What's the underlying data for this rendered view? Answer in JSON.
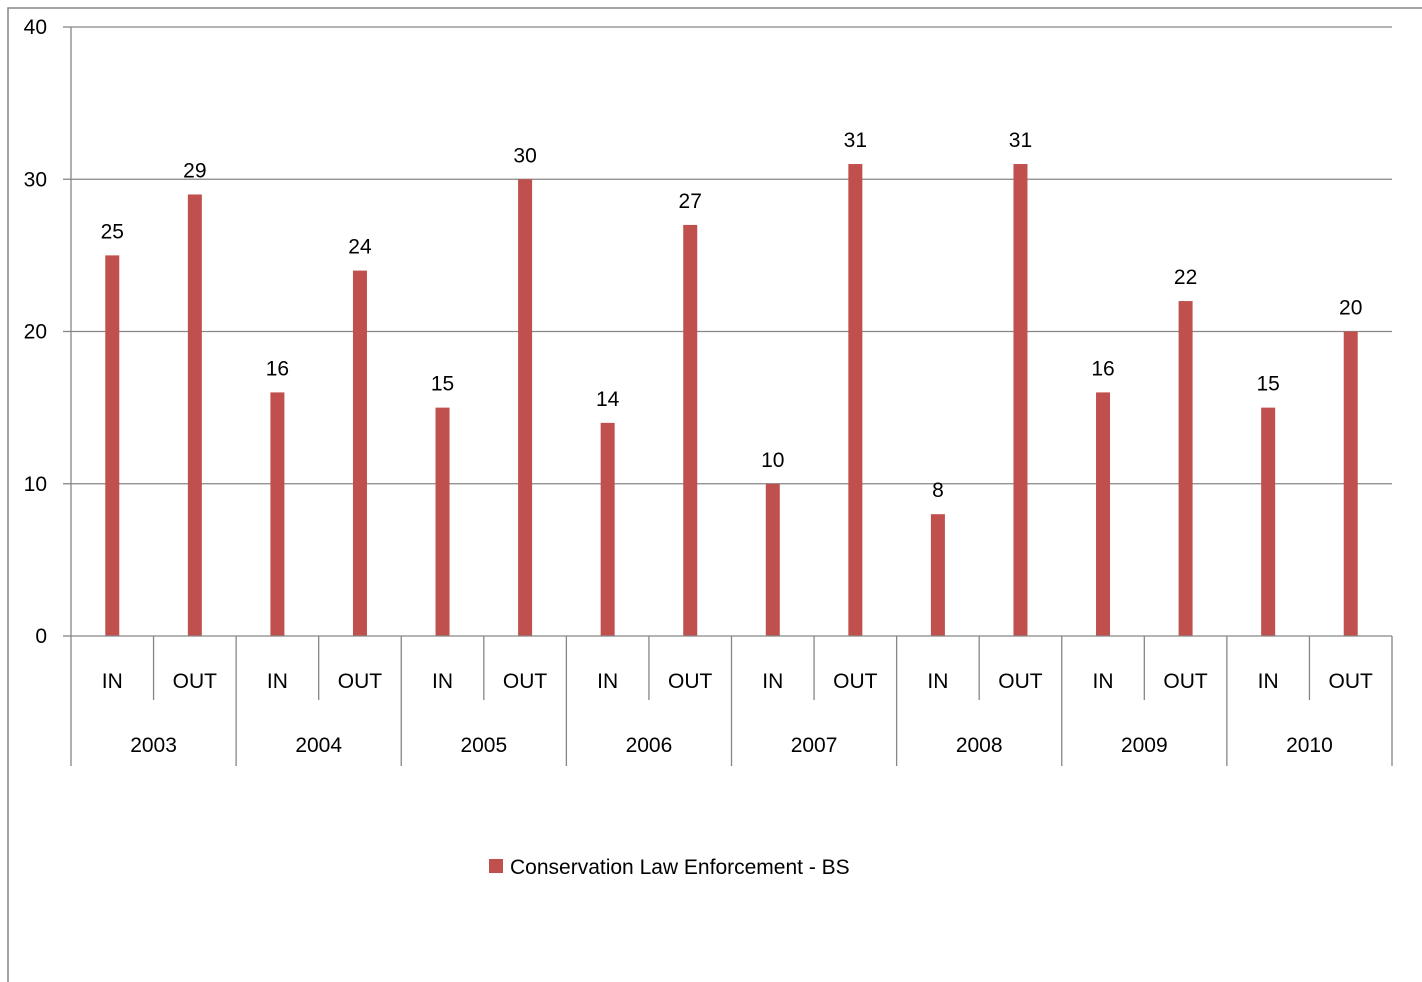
{
  "chart_data": {
    "type": "bar",
    "groups": [
      "2003",
      "2004",
      "2005",
      "2006",
      "2007",
      "2008",
      "2009",
      "2010"
    ],
    "subcategories": [
      "IN",
      "OUT"
    ],
    "categories": [
      "2003 IN",
      "2003 OUT",
      "2004 IN",
      "2004 OUT",
      "2005 IN",
      "2005 OUT",
      "2006 IN",
      "2006 OUT",
      "2007 IN",
      "2007 OUT",
      "2008 IN",
      "2008 OUT",
      "2009 IN",
      "2009 OUT",
      "2010 IN",
      "2010 OUT"
    ],
    "series": [
      {
        "name": "Conservation Law Enforcement - BS",
        "color": "#c0504d",
        "values": [
          25,
          29,
          16,
          24,
          15,
          30,
          14,
          27,
          10,
          31,
          8,
          31,
          16,
          22,
          15,
          20
        ]
      }
    ],
    "ylim": [
      0,
      40
    ],
    "yticks": [
      0,
      10,
      20,
      30,
      40
    ],
    "grid": true,
    "legend_position": "bottom",
    "data_labels": true
  }
}
